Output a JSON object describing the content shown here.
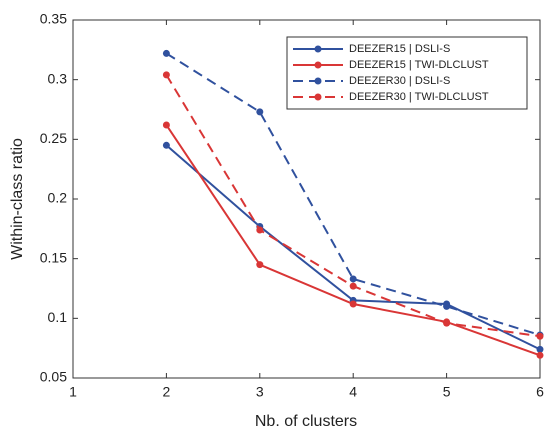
{
  "chart_data": {
    "type": "line",
    "x_label": "Nb. of clusters",
    "y_label": "Within-class ratio",
    "x": [
      2,
      3,
      4,
      5,
      6
    ],
    "series": [
      {
        "name": "DEEZER15 | DSLI-S",
        "color": "#30519e",
        "linestyle": "solid",
        "values": [
          0.245,
          0.177,
          0.115,
          0.112,
          0.074
        ]
      },
      {
        "name": "DEEZER15 | TWI-DLCLUST",
        "color": "#d93636",
        "linestyle": "solid",
        "values": [
          0.262,
          0.145,
          0.112,
          0.097,
          0.069
        ]
      },
      {
        "name": "DEEZER30 | DSLI-S",
        "color": "#30519e",
        "linestyle": "dashed",
        "values": [
          0.322,
          0.273,
          0.133,
          0.11,
          0.086
        ]
      },
      {
        "name": "DEEZER30 | TWI-DLCLUST",
        "color": "#d93636",
        "linestyle": "dashed",
        "values": [
          0.304,
          0.174,
          0.127,
          0.096,
          0.085
        ]
      }
    ],
    "xlim": [
      1,
      6
    ],
    "xticks": [
      1,
      2,
      3,
      4,
      5,
      6
    ],
    "ylim": [
      0.05,
      0.35
    ],
    "yticks": [
      0.05,
      0.1,
      0.15,
      0.2,
      0.25,
      0.3,
      0.35
    ],
    "legend": "upper right",
    "grid": false
  }
}
